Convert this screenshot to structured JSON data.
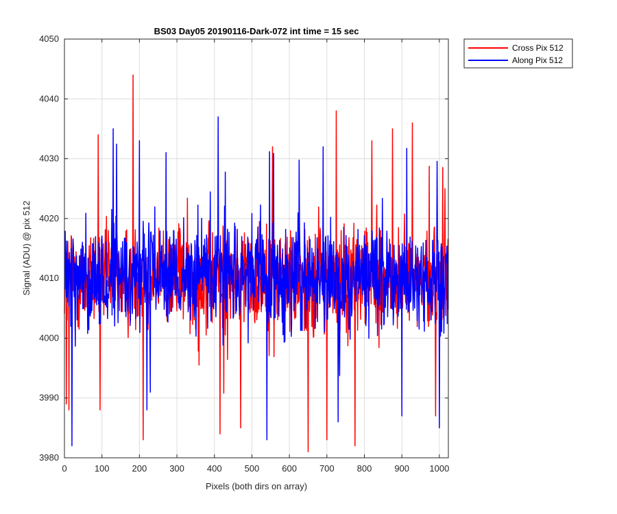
{
  "chart_data": {
    "type": "line",
    "title": "BS03 Day05 20190116-Dark-072 int time = 15 sec",
    "xlabel": "Pixels (both dirs on array)",
    "ylabel": "Signal (ADU) @ pix 512",
    "xlim": [
      0,
      1024
    ],
    "ylim": [
      3980,
      4050
    ],
    "xticks": [
      0,
      100,
      200,
      300,
      400,
      500,
      600,
      700,
      800,
      900,
      1000
    ],
    "yticks": [
      3980,
      3990,
      4000,
      4010,
      4020,
      4030,
      4040,
      4050
    ],
    "grid": true,
    "legend_position": "outside-top-right",
    "series": [
      {
        "name": "Cross Pix 512",
        "color": "#ff0000",
        "mean": 4010,
        "noise_note": "dense noise, approx 3990-4025",
        "peaks": [
          [
            5,
            3989
          ],
          [
            12,
            3988
          ],
          [
            90,
            4034
          ],
          [
            95,
            3988
          ],
          [
            183,
            4044
          ],
          [
            210,
            3983
          ],
          [
            415,
            3984
          ],
          [
            470,
            3985
          ],
          [
            555,
            4032
          ],
          [
            650,
            3981
          ],
          [
            700,
            3983
          ],
          [
            725,
            4038
          ],
          [
            775,
            3982
          ],
          [
            820,
            4033
          ],
          [
            875,
            4035
          ],
          [
            928,
            4036
          ],
          [
            990,
            3987
          ],
          [
            1015,
            4025
          ]
        ]
      },
      {
        "name": "Along Pix 512",
        "color": "#0000ff",
        "mean": 4010,
        "noise_note": "dense noise, approx 3992-4025",
        "peaks": [
          [
            20,
            3982
          ],
          [
            130,
            4035
          ],
          [
            200,
            4033
          ],
          [
            220,
            3988
          ],
          [
            410,
            4037
          ],
          [
            540,
            3983
          ],
          [
            690,
            4032
          ],
          [
            730,
            3986
          ],
          [
            900,
            3987
          ],
          [
            1000,
            3985
          ]
        ]
      }
    ]
  }
}
